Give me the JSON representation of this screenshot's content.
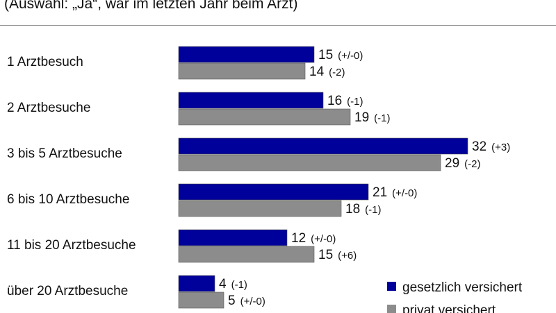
{
  "subtitle": "(Auswahl: „Ja“, war im letzten Jahr beim Arzt)",
  "colors": {
    "gesetzlich": "#00009a",
    "privat": "#8c8c8c",
    "bar_edge": "#555555"
  },
  "chart_data": {
    "type": "bar",
    "orientation": "horizontal",
    "categories": [
      "1 Arztbesuch",
      "2 Arztbesuche",
      "3 bis 5 Arztbesuche",
      "6 bis 10 Arztbesuche",
      "11 bis 20 Arztbesuche",
      "über 20 Arztbesuche"
    ],
    "series": [
      {
        "name": "gesetzlich versichert",
        "values": [
          15,
          16,
          32,
          21,
          12,
          4
        ],
        "changes": [
          "(+/-0)",
          "(-1)",
          "(+3)",
          "(+/-0)",
          "(+/-0)",
          "(-1)"
        ]
      },
      {
        "name": "privat versichert",
        "values": [
          14,
          19,
          29,
          18,
          15,
          5
        ],
        "changes": [
          "(-2)",
          "(-1)",
          "(-2)",
          "(-1)",
          "(+6)",
          "(+/-0)"
        ]
      }
    ],
    "legend": "bottom-right",
    "grid": false
  }
}
